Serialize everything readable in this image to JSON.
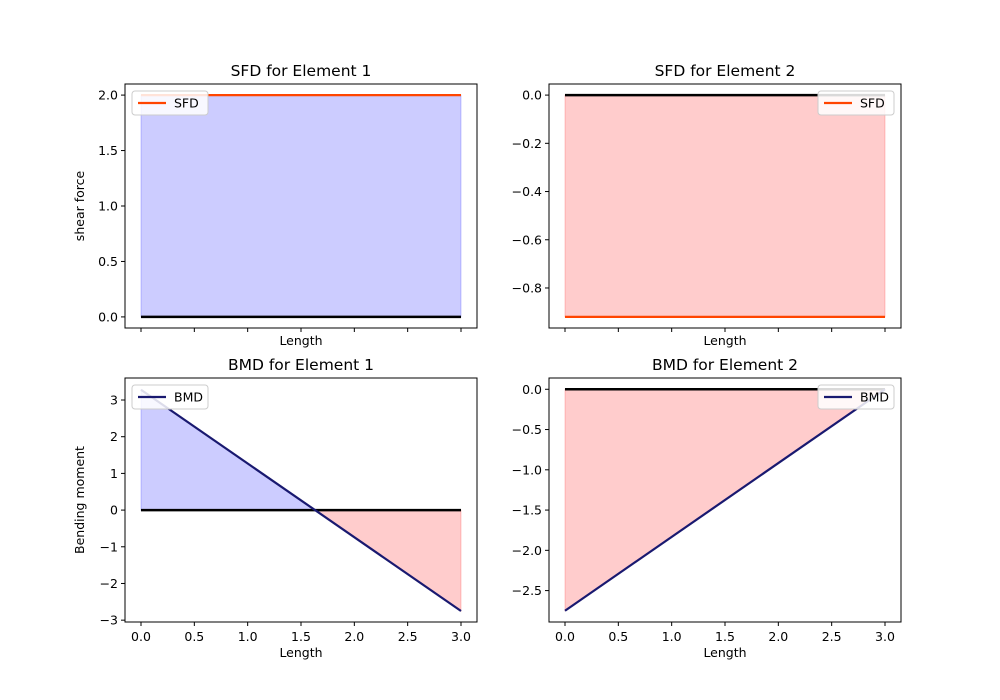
{
  "chart_data": [
    {
      "type": "line",
      "title": "SFD for Element 1",
      "xlabel": "Length",
      "ylabel": "shear force",
      "xlim": [
        -0.15,
        3.15
      ],
      "ylim": [
        -0.1,
        2.1
      ],
      "xticks": [
        0,
        0.5,
        1,
        1.5,
        2,
        2.5,
        3
      ],
      "xtick_labels_shown": false,
      "yticks": [
        0.0,
        0.5,
        1.0,
        1.5,
        2.0
      ],
      "ytick_labels": [
        "0.0",
        "0.5",
        "1.0",
        "1.5",
        "2.0"
      ],
      "legend": {
        "placement": "upper-left",
        "entries": [
          "SFD"
        ]
      },
      "series": [
        {
          "name": "SFD",
          "color": "#ff4500",
          "x": [
            0,
            3
          ],
          "y": [
            2.0,
            2.0
          ]
        }
      ],
      "baseline": {
        "color": "#000000",
        "x": [
          0,
          3
        ],
        "y": [
          0,
          0
        ]
      },
      "fills": [
        {
          "color": "#0000ff",
          "x": [
            0,
            3
          ],
          "y_top": [
            2.0,
            2.0
          ],
          "y_bottom": [
            0,
            0
          ]
        }
      ]
    },
    {
      "type": "line",
      "title": "SFD for Element 2",
      "xlabel": "Length",
      "ylabel": "",
      "xlim": [
        -0.15,
        3.15
      ],
      "ylim": [
        -0.966,
        0.046
      ],
      "xticks": [
        0,
        0.5,
        1,
        1.5,
        2,
        2.5,
        3
      ],
      "xtick_labels_shown": false,
      "yticks": [
        -0.8,
        -0.6,
        -0.4,
        -0.2,
        0.0
      ],
      "ytick_labels": [
        "−0.8",
        "−0.6",
        "−0.4",
        "−0.2",
        "0.0"
      ],
      "legend": {
        "placement": "upper-right",
        "entries": [
          "SFD"
        ]
      },
      "series": [
        {
          "name": "SFD",
          "color": "#ff4500",
          "x": [
            0,
            3
          ],
          "y": [
            -0.92,
            -0.92
          ]
        }
      ],
      "baseline": {
        "color": "#000000",
        "x": [
          0,
          3
        ],
        "y": [
          0,
          0
        ]
      },
      "fills": [
        {
          "color": "#ff0000",
          "x": [
            0,
            3
          ],
          "y_top": [
            0,
            0
          ],
          "y_bottom": [
            -0.92,
            -0.92
          ]
        }
      ]
    },
    {
      "type": "line",
      "title": "BMD for Element 1",
      "xlabel": "Length",
      "ylabel": "Bending moment",
      "xlim": [
        -0.15,
        3.15
      ],
      "ylim": [
        -3.05,
        3.6
      ],
      "xticks": [
        0,
        0.5,
        1,
        1.5,
        2,
        2.5,
        3
      ],
      "xtick_labels": [
        "0.0",
        "0.5",
        "1.0",
        "1.5",
        "2.0",
        "2.5",
        "3.0"
      ],
      "yticks": [
        -3,
        -2,
        -1,
        0,
        1,
        2,
        3
      ],
      "ytick_labels": [
        "−3",
        "−2",
        "−1",
        "0",
        "1",
        "2",
        "3"
      ],
      "legend": {
        "placement": "upper-left",
        "entries": [
          "BMD"
        ]
      },
      "series": [
        {
          "name": "BMD",
          "color": "#191970",
          "x": [
            0,
            3
          ],
          "y": [
            3.28,
            -2.75
          ]
        }
      ],
      "baseline": {
        "color": "#000000",
        "x": [
          0,
          3
        ],
        "y": [
          0,
          0
        ]
      },
      "fills": [
        {
          "color": "#0000ff",
          "x": [
            0,
            1.632
          ],
          "y_top": [
            3.28,
            0
          ],
          "y_bottom": [
            0,
            0
          ]
        },
        {
          "color": "#ff0000",
          "x": [
            1.632,
            3
          ],
          "y_top": [
            0,
            0
          ],
          "y_bottom": [
            0,
            -2.75
          ]
        }
      ]
    },
    {
      "type": "line",
      "title": "BMD for Element 2",
      "xlabel": "Length",
      "ylabel": "",
      "xlim": [
        -0.15,
        3.15
      ],
      "ylim": [
        -2.89,
        0.14
      ],
      "xticks": [
        0,
        0.5,
        1,
        1.5,
        2,
        2.5,
        3
      ],
      "xtick_labels": [
        "0.0",
        "0.5",
        "1.0",
        "1.5",
        "2.0",
        "2.5",
        "3.0"
      ],
      "yticks": [
        -2.5,
        -2.0,
        -1.5,
        -1.0,
        -0.5,
        0.0
      ],
      "ytick_labels": [
        "−2.5",
        "−2.0",
        "−1.5",
        "−1.0",
        "−0.5",
        "0.0"
      ],
      "legend": {
        "placement": "upper-right",
        "entries": [
          "BMD"
        ]
      },
      "series": [
        {
          "name": "BMD",
          "color": "#191970",
          "x": [
            0,
            3
          ],
          "y": [
            -2.75,
            0
          ]
        }
      ],
      "baseline": {
        "color": "#000000",
        "x": [
          0,
          3
        ],
        "y": [
          0,
          0
        ]
      },
      "fills": [
        {
          "color": "#ff0000",
          "x": [
            0,
            3
          ],
          "y_top": [
            0,
            0
          ],
          "y_bottom": [
            -2.75,
            0
          ]
        }
      ]
    }
  ]
}
